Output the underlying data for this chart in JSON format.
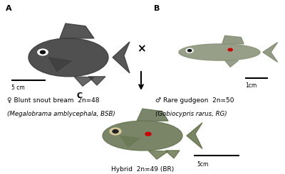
{
  "panel_A_label": "A",
  "panel_B_label": "B",
  "panel_C_label": "C",
  "panel_A_sex": "♀",
  "panel_B_sex": "♂",
  "panel_A_line1": "Blunt snout bream  2n=48",
  "panel_A_line2": "(Megalobrama amblycephala, BSB)",
  "panel_B_line1": "Rare gudgeon  2n=50",
  "panel_B_line2": "(Gobiocypris rarus, RG)",
  "panel_C_line1": "Hybrid  2n=49 (BR)",
  "scale_A_text": "5 cm",
  "scale_B_text": "1cm",
  "scale_C_text": "5cm",
  "cross_symbol": "×",
  "bg_color": "#ffffff",
  "text_color": "#000000",
  "panel_fontsize": 8,
  "caption_fontsize": 6.5,
  "italic_fontsize": 6.2
}
